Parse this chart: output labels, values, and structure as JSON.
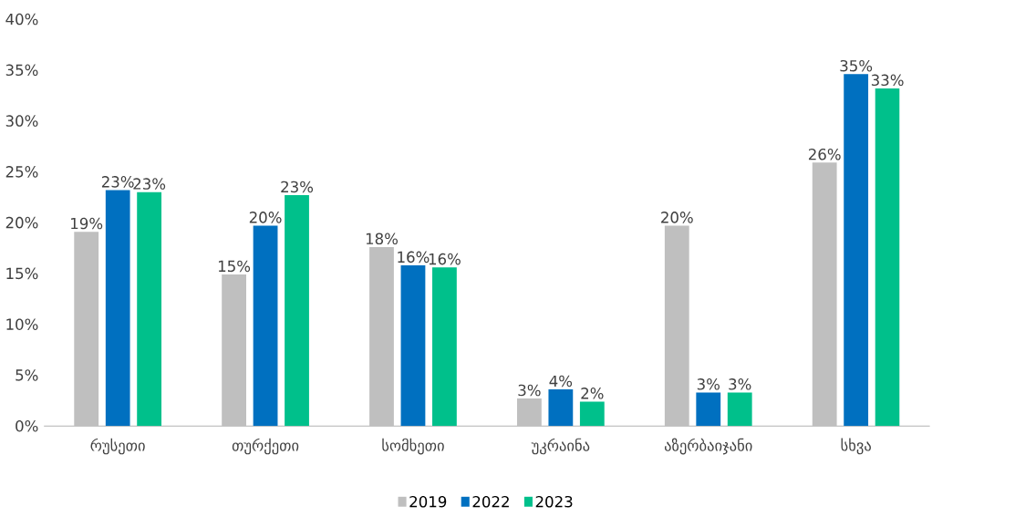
{
  "chart_data": {
    "type": "bar",
    "categories": [
      "რუსეთი",
      "თურქეთი",
      "სომხეთი",
      "უკრაინა",
      "აზერბაიჯანი",
      "სხვა"
    ],
    "series": [
      {
        "name": "2019",
        "color": "#bfbfbf",
        "values": [
          19.1,
          14.9,
          17.6,
          2.7,
          19.7,
          25.9
        ],
        "value_labels": [
          "19%",
          "15%",
          "18%",
          "3%",
          "20%",
          "26%"
        ]
      },
      {
        "name": "2022",
        "color": "#0070c0",
        "values": [
          23.2,
          19.7,
          15.8,
          3.6,
          3.3,
          34.6
        ],
        "value_labels": [
          "23%",
          "20%",
          "16%",
          "4%",
          "3%",
          "35%"
        ]
      },
      {
        "name": "2023",
        "color": "#00c08b",
        "values": [
          23.0,
          22.7,
          15.6,
          2.4,
          3.3,
          33.2
        ],
        "value_labels": [
          "23%",
          "23%",
          "16%",
          "2%",
          "3%",
          "33%"
        ]
      }
    ],
    "ylim": [
      0,
      40
    ],
    "yticks": [
      {
        "value": 0,
        "label": "0%"
      },
      {
        "value": 5,
        "label": "5%"
      },
      {
        "value": 10,
        "label": "10%"
      },
      {
        "value": 15,
        "label": "15%"
      },
      {
        "value": 20,
        "label": "20%"
      },
      {
        "value": 25,
        "label": "25%"
      },
      {
        "value": 30,
        "label": "30%"
      },
      {
        "value": 35,
        "label": "35%"
      },
      {
        "value": 40,
        "label": "40%"
      }
    ],
    "legend": "bottom"
  }
}
